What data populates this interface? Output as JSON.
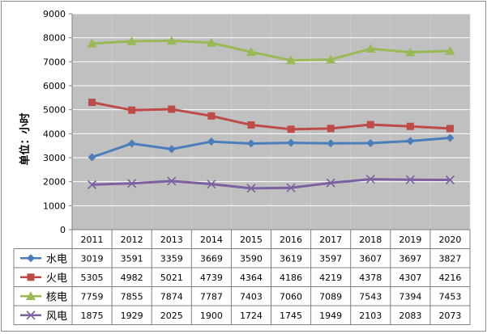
{
  "colors": {
    "plot_bg": "#c0c0c0",
    "grid": "#ffffff",
    "axis": "#808080",
    "水电": "#4a7ebb",
    "火电": "#be4b48",
    "核电": "#98b954",
    "风电": "#7d60a0"
  },
  "chart_data": {
    "type": "line",
    "ylabel": "单位：小时",
    "ylim": [
      0,
      9000
    ],
    "yticks": [
      "0",
      "1000",
      "2000",
      "3000",
      "4000",
      "5000",
      "6000",
      "7000",
      "8000",
      "9000"
    ],
    "categories": [
      "2011",
      "2012",
      "2013",
      "2014",
      "2015",
      "2016",
      "2017",
      "2018",
      "2019",
      "2020"
    ],
    "grid": true,
    "data_table": true,
    "series": [
      {
        "name": "水电",
        "marker": "diamond",
        "values": [
          3019,
          3591,
          3359,
          3669,
          3590,
          3619,
          3597,
          3607,
          3697,
          3827
        ]
      },
      {
        "name": "火电",
        "marker": "square",
        "values": [
          5305,
          4982,
          5021,
          4739,
          4364,
          4186,
          4219,
          4378,
          4307,
          4216
        ]
      },
      {
        "name": "核电",
        "marker": "triangle",
        "values": [
          7759,
          7855,
          7874,
          7787,
          7403,
          7060,
          7089,
          7543,
          7394,
          7453
        ]
      },
      {
        "name": "风电",
        "marker": "x",
        "values": [
          1875,
          1929,
          2025,
          1900,
          1724,
          1745,
          1949,
          2103,
          2083,
          2073
        ]
      }
    ]
  }
}
